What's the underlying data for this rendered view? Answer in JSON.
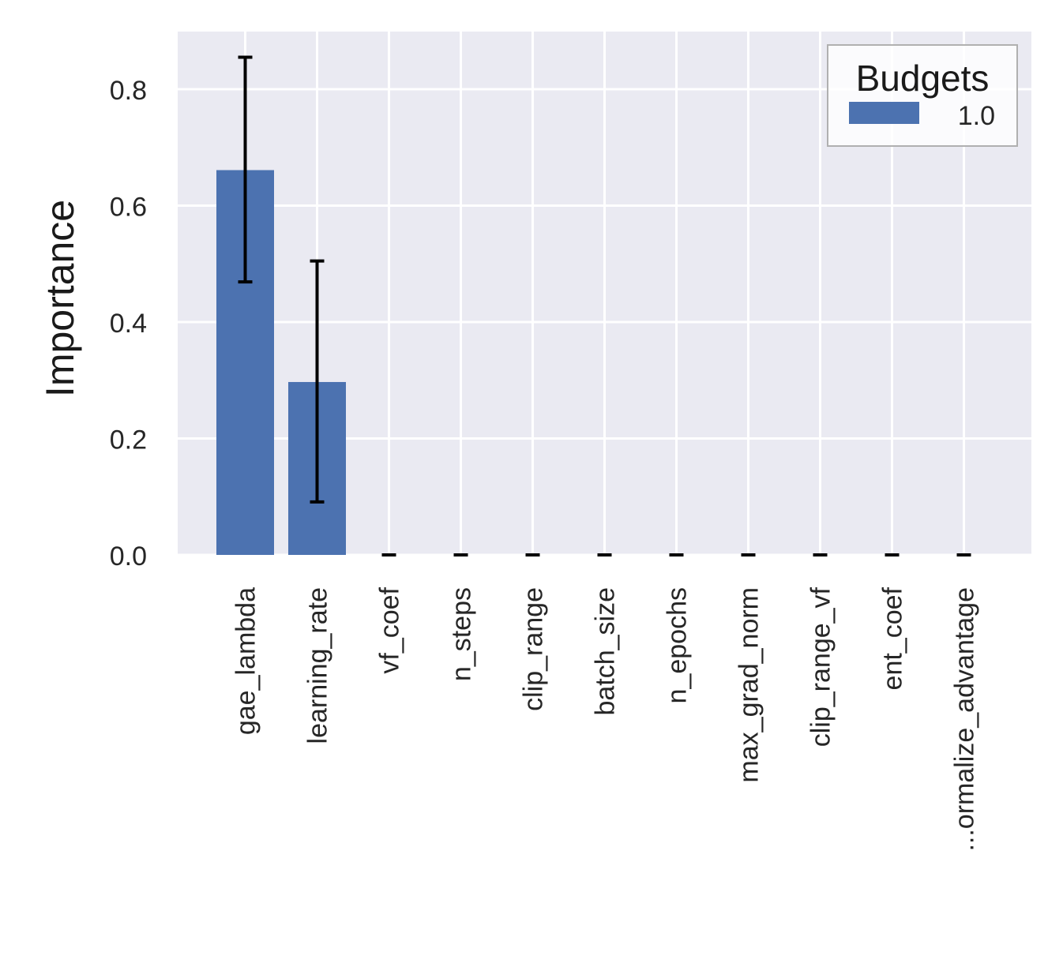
{
  "chart_data": {
    "type": "bar",
    "title": "",
    "xlabel": "",
    "ylabel": "Importance",
    "ylim": [
      0,
      0.9
    ],
    "yticks": [
      0.0,
      0.2,
      0.4,
      0.6,
      0.8
    ],
    "ytick_labels": [
      "0.0",
      "0.2",
      "0.4",
      "0.6",
      "0.8"
    ],
    "grid": true,
    "legend": {
      "title": "Budgets",
      "placement": "top-right"
    },
    "categories": [
      "gae_lambda",
      "learning_rate",
      "vf_coef",
      "n_steps",
      "clip_range",
      "batch_size",
      "n_epochs",
      "max_grad_norm",
      "clip_range_vf",
      "ent_coef",
      "...ormalize_advantage"
    ],
    "series": [
      {
        "name": "1.0",
        "color": "#4c72b0",
        "values": [
          0.661,
          0.297,
          0,
          0,
          0,
          0,
          0,
          0,
          0,
          0,
          0
        ],
        "error_low": [
          0.469,
          0.091,
          0,
          0,
          0,
          0,
          0,
          0,
          0,
          0,
          0
        ],
        "error_high": [
          0.855,
          0.505,
          0,
          0,
          0,
          0,
          0,
          0,
          0,
          0,
          0
        ]
      }
    ]
  }
}
